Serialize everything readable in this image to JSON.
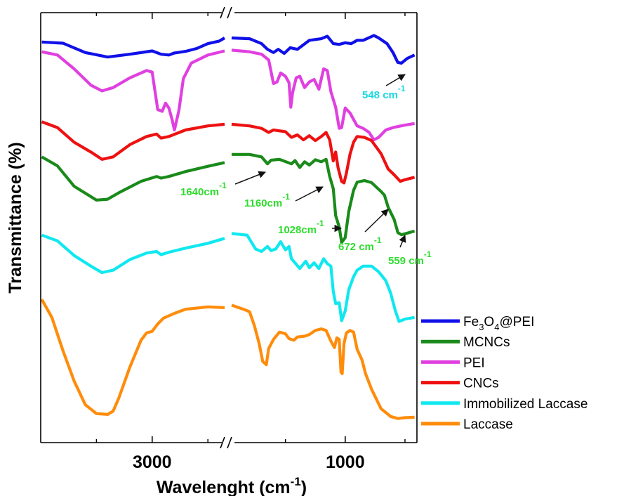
{
  "chart_data": {
    "type": "line",
    "xlabel": "Wavelenght",
    "xlabel_unit": "(cm",
    "xlabel_unit_sup": "-1",
    "xlabel_close": ")",
    "ylabel": "Transmittance (%)",
    "x_ticks": [
      "3000",
      "1000"
    ],
    "axis_break": true,
    "x_left_segment": [
      4000,
      2350
    ],
    "x_right_segment": [
      1950,
      400
    ],
    "y_tick_labels": false,
    "grid": false,
    "legend_position": "right-bottom",
    "series": [
      {
        "name": "Fe3O4@PEI",
        "legend": [
          "Fe",
          "3",
          "O",
          "4",
          "@PEI"
        ],
        "color": "#1010e8",
        "points": [
          [
            3990,
            92.8
          ],
          [
            3800,
            92.5
          ],
          [
            3600,
            90.2
          ],
          [
            3400,
            89.1
          ],
          [
            3200,
            89.8
          ],
          [
            3000,
            90.6
          ],
          [
            2920,
            89.8
          ],
          [
            2850,
            89.6
          ],
          [
            2800,
            90.1
          ],
          [
            2700,
            90.5
          ],
          [
            2600,
            91.2
          ],
          [
            2500,
            92.4
          ],
          [
            2400,
            93.0
          ],
          [
            2350,
            93.8
          ],
          [
            1950,
            93.8
          ],
          [
            1800,
            93.6
          ],
          [
            1700,
            92.4
          ],
          [
            1650,
            91.0
          ],
          [
            1600,
            90.2
          ],
          [
            1560,
            91.0
          ],
          [
            1510,
            90.0
          ],
          [
            1460,
            91.4
          ],
          [
            1400,
            91.0
          ],
          [
            1300,
            93.2
          ],
          [
            1200,
            93.6
          ],
          [
            1150,
            94.2
          ],
          [
            1100,
            92.4
          ],
          [
            1050,
            92.2
          ],
          [
            1000,
            92.6
          ],
          [
            950,
            92.4
          ],
          [
            900,
            93.2
          ],
          [
            850,
            93.2
          ],
          [
            760,
            94.4
          ],
          [
            720,
            93.8
          ],
          [
            650,
            92.4
          ],
          [
            600,
            90.2
          ],
          [
            560,
            87.8
          ],
          [
            530,
            87.6
          ],
          [
            480,
            88.8
          ],
          [
            420,
            89.6
          ]
        ]
      },
      {
        "name": "MCNCs",
        "legend": [
          "MCNCs"
        ],
        "color": "#1a8a1a",
        "points": [
          [
            3990,
            64.6
          ],
          [
            3850,
            62.4
          ],
          [
            3700,
            57.4
          ],
          [
            3500,
            54.0
          ],
          [
            3400,
            54.2
          ],
          [
            3300,
            55.8
          ],
          [
            3100,
            58.6
          ],
          [
            2960,
            59.8
          ],
          [
            2920,
            59.4
          ],
          [
            2850,
            59.8
          ],
          [
            2700,
            61.0
          ],
          [
            2500,
            62.3
          ],
          [
            2350,
            63.2
          ],
          [
            1950,
            65.2
          ],
          [
            1800,
            65.2
          ],
          [
            1700,
            64.6
          ],
          [
            1650,
            62.9
          ],
          [
            1620,
            63.8
          ],
          [
            1550,
            64.0
          ],
          [
            1450,
            62.9
          ],
          [
            1420,
            63.7
          ],
          [
            1380,
            62.0
          ],
          [
            1340,
            63.4
          ],
          [
            1300,
            62.6
          ],
          [
            1250,
            63.9
          ],
          [
            1200,
            63.4
          ],
          [
            1160,
            64.0
          ],
          [
            1130,
            59.8
          ],
          [
            1100,
            56.8
          ],
          [
            1080,
            50.2
          ],
          [
            1050,
            47.4
          ],
          [
            1030,
            43.6
          ],
          [
            1000,
            44.8
          ],
          [
            970,
            51.2
          ],
          [
            930,
            56.4
          ],
          [
            900,
            58.4
          ],
          [
            840,
            58.8
          ],
          [
            780,
            58.3
          ],
          [
            700,
            56.1
          ],
          [
            672,
            55.2
          ],
          [
            640,
            52.2
          ],
          [
            590,
            49.2
          ],
          [
            559,
            46.0
          ],
          [
            530,
            45.5
          ],
          [
            480,
            45.9
          ],
          [
            420,
            46.4
          ]
        ]
      },
      {
        "name": "PEI",
        "legend": [
          "PEI"
        ],
        "color": "#e040e0",
        "points": [
          [
            3990,
            90.4
          ],
          [
            3850,
            89.6
          ],
          [
            3700,
            86.2
          ],
          [
            3550,
            82.2
          ],
          [
            3450,
            80.8
          ],
          [
            3350,
            81.6
          ],
          [
            3200,
            84.0
          ],
          [
            3050,
            85.8
          ],
          [
            3000,
            85.4
          ],
          [
            2950,
            76.2
          ],
          [
            2910,
            75.8
          ],
          [
            2880,
            77.8
          ],
          [
            2850,
            76.6
          ],
          [
            2820,
            73.6
          ],
          [
            2800,
            71.2
          ],
          [
            2760,
            76.0
          ],
          [
            2720,
            83.8
          ],
          [
            2650,
            87.6
          ],
          [
            2500,
            89.6
          ],
          [
            2350,
            90.6
          ],
          [
            1950,
            90.8
          ],
          [
            1800,
            90.4
          ],
          [
            1700,
            89.8
          ],
          [
            1640,
            88.4
          ],
          [
            1600,
            82.6
          ],
          [
            1570,
            83.0
          ],
          [
            1540,
            85.2
          ],
          [
            1500,
            84.4
          ],
          [
            1470,
            82.8
          ],
          [
            1455,
            76.8
          ],
          [
            1440,
            80.4
          ],
          [
            1410,
            84.0
          ],
          [
            1380,
            84.4
          ],
          [
            1340,
            81.6
          ],
          [
            1300,
            83.0
          ],
          [
            1260,
            83.6
          ],
          [
            1220,
            81.2
          ],
          [
            1180,
            86.2
          ],
          [
            1150,
            85.8
          ],
          [
            1120,
            80.6
          ],
          [
            1080,
            76.8
          ],
          [
            1050,
            71.6
          ],
          [
            1030,
            71.8
          ],
          [
            1000,
            76.6
          ],
          [
            960,
            75.4
          ],
          [
            900,
            72.2
          ],
          [
            850,
            71.6
          ],
          [
            800,
            70.6
          ],
          [
            760,
            68.8
          ],
          [
            720,
            69.4
          ],
          [
            660,
            71.2
          ],
          [
            600,
            71.8
          ],
          [
            500,
            72.4
          ],
          [
            420,
            72.8
          ]
        ]
      },
      {
        "name": "CNCs",
        "legend": [
          "CNCs"
        ],
        "color": "#ee1111",
        "points": [
          [
            3990,
            73.2
          ],
          [
            3850,
            71.8
          ],
          [
            3700,
            68.2
          ],
          [
            3550,
            65.8
          ],
          [
            3450,
            64.0
          ],
          [
            3350,
            64.6
          ],
          [
            3200,
            67.6
          ],
          [
            3050,
            69.6
          ],
          [
            2960,
            70.2
          ],
          [
            2920,
            69.2
          ],
          [
            2850,
            69.6
          ],
          [
            2700,
            71.2
          ],
          [
            2500,
            72.2
          ],
          [
            2350,
            72.6
          ],
          [
            1950,
            72.6
          ],
          [
            1800,
            72.2
          ],
          [
            1700,
            71.6
          ],
          [
            1640,
            70.6
          ],
          [
            1600,
            71.2
          ],
          [
            1500,
            70.8
          ],
          [
            1450,
            69.4
          ],
          [
            1400,
            70.0
          ],
          [
            1350,
            68.8
          ],
          [
            1300,
            69.8
          ],
          [
            1250,
            68.6
          ],
          [
            1200,
            69.6
          ],
          [
            1160,
            70.6
          ],
          [
            1130,
            68.8
          ],
          [
            1100,
            63.6
          ],
          [
            1080,
            65.8
          ],
          [
            1060,
            62.0
          ],
          [
            1030,
            58.6
          ],
          [
            1010,
            58.2
          ],
          [
            990,
            60.6
          ],
          [
            960,
            65.2
          ],
          [
            930,
            68.2
          ],
          [
            900,
            69.6
          ],
          [
            840,
            69.4
          ],
          [
            780,
            68.6
          ],
          [
            700,
            65.4
          ],
          [
            640,
            61.6
          ],
          [
            590,
            60.2
          ],
          [
            540,
            58.6
          ],
          [
            500,
            59.0
          ],
          [
            420,
            59.6
          ]
        ]
      },
      {
        "name": "Immobilized Laccase",
        "legend": [
          "Immobilized Laccase"
        ],
        "color": "#10e8f0",
        "points": [
          [
            3990,
            45.4
          ],
          [
            3850,
            44.0
          ],
          [
            3700,
            40.4
          ],
          [
            3550,
            37.8
          ],
          [
            3450,
            36.2
          ],
          [
            3350,
            36.8
          ],
          [
            3200,
            39.4
          ],
          [
            3050,
            41.0
          ],
          [
            2960,
            41.4
          ],
          [
            2920,
            40.6
          ],
          [
            2850,
            41.2
          ],
          [
            2700,
            42.2
          ],
          [
            2500,
            43.4
          ],
          [
            2350,
            44.6
          ],
          [
            1950,
            45.8
          ],
          [
            1820,
            45.4
          ],
          [
            1750,
            42.0
          ],
          [
            1700,
            41.4
          ],
          [
            1650,
            42.6
          ],
          [
            1620,
            41.6
          ],
          [
            1580,
            42.0
          ],
          [
            1540,
            43.8
          ],
          [
            1500,
            41.8
          ],
          [
            1470,
            42.6
          ],
          [
            1450,
            39.6
          ],
          [
            1420,
            38.6
          ],
          [
            1380,
            37.2
          ],
          [
            1330,
            39.0
          ],
          [
            1300,
            37.4
          ],
          [
            1260,
            38.6
          ],
          [
            1220,
            37.2
          ],
          [
            1180,
            39.6
          ],
          [
            1150,
            38.4
          ],
          [
            1120,
            37.8
          ],
          [
            1100,
            31.6
          ],
          [
            1080,
            28.6
          ],
          [
            1050,
            28.8
          ],
          [
            1030,
            24.4
          ],
          [
            1000,
            26.8
          ],
          [
            970,
            32.0
          ],
          [
            930,
            35.2
          ],
          [
            900,
            36.8
          ],
          [
            850,
            37.8
          ],
          [
            780,
            37.8
          ],
          [
            720,
            36.4
          ],
          [
            660,
            34.2
          ],
          [
            620,
            31.2
          ],
          [
            580,
            26.8
          ],
          [
            550,
            24.2
          ],
          [
            500,
            24.8
          ],
          [
            420,
            25.2
          ]
        ]
      },
      {
        "name": "Laccase",
        "legend": [
          "Laccase"
        ],
        "color": "#ff8c0a",
        "points": [
          [
            3990,
            29.6
          ],
          [
            3900,
            25.2
          ],
          [
            3800,
            17.0
          ],
          [
            3700,
            9.6
          ],
          [
            3600,
            3.8
          ],
          [
            3500,
            1.6
          ],
          [
            3400,
            1.4
          ],
          [
            3350,
            2.2
          ],
          [
            3300,
            5.4
          ],
          [
            3200,
            13.0
          ],
          [
            3100,
            19.6
          ],
          [
            3050,
            21.4
          ],
          [
            3000,
            21.8
          ],
          [
            2950,
            23.6
          ],
          [
            2900,
            25.0
          ],
          [
            2800,
            26.2
          ],
          [
            2700,
            27.2
          ],
          [
            2500,
            27.8
          ],
          [
            2350,
            27.6
          ],
          [
            1950,
            28.2
          ],
          [
            1850,
            27.2
          ],
          [
            1800,
            26.6
          ],
          [
            1760,
            23.2
          ],
          [
            1720,
            18.8
          ],
          [
            1690,
            14.4
          ],
          [
            1660,
            13.6
          ],
          [
            1640,
            17.6
          ],
          [
            1600,
            19.8
          ],
          [
            1550,
            21.6
          ],
          [
            1500,
            21.2
          ],
          [
            1470,
            20.0
          ],
          [
            1430,
            19.6
          ],
          [
            1400,
            20.4
          ],
          [
            1340,
            20.6
          ],
          [
            1300,
            21.0
          ],
          [
            1250,
            22.0
          ],
          [
            1200,
            22.4
          ],
          [
            1160,
            22.0
          ],
          [
            1120,
            19.4
          ],
          [
            1090,
            17.8
          ],
          [
            1070,
            20.2
          ],
          [
            1050,
            19.8
          ],
          [
            1035,
            11.8
          ],
          [
            1025,
            11.4
          ],
          [
            1010,
            18.8
          ],
          [
            990,
            21.4
          ],
          [
            960,
            22.0
          ],
          [
            930,
            21.6
          ],
          [
            900,
            17.4
          ],
          [
            860,
            14.8
          ],
          [
            830,
            11.4
          ],
          [
            780,
            7.6
          ],
          [
            700,
            2.8
          ],
          [
            620,
            0.9
          ],
          [
            560,
            0.4
          ],
          [
            500,
            0.6
          ],
          [
            420,
            0.7
          ]
        ]
      }
    ],
    "annotations": [
      {
        "text": "548 cm",
        "sup": "-1",
        "color": "#18d8e4",
        "series": "Fe3O4@PEI"
      },
      {
        "text": "1640cm",
        "sup": "-1",
        "color": "#2edc2e",
        "series": "MCNCs"
      },
      {
        "text": "1160cm",
        "sup": "-1",
        "color": "#2edc2e",
        "series": "MCNCs"
      },
      {
        "text": "1028cm",
        "sup": "-1",
        "color": "#2edc2e",
        "series": "MCNCs"
      },
      {
        "text": "672 cm",
        "sup": "-1",
        "color": "#2edc2e",
        "series": "MCNCs"
      },
      {
        "text": "559 cm",
        "sup": "-1",
        "color": "#2edc2e",
        "series": "MCNCs"
      }
    ]
  }
}
